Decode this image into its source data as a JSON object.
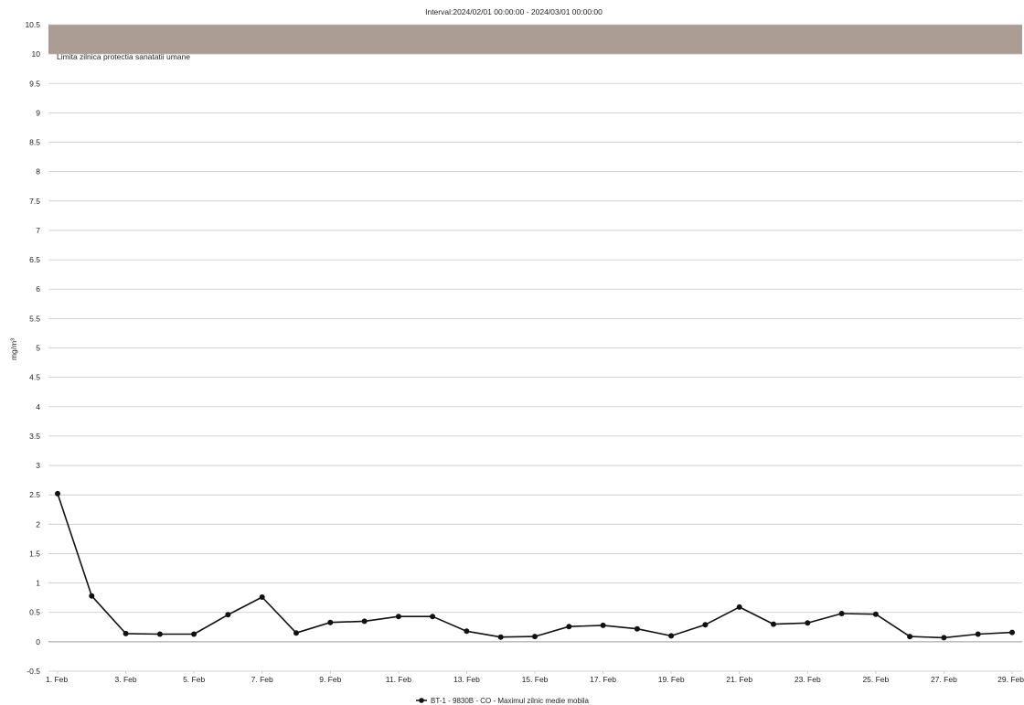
{
  "chart_data": {
    "type": "line",
    "title": "Interval:2024/02/01 00:00:00 - 2024/03/01 00:00:00",
    "ylabel": "mg/m³",
    "xlabel": "",
    "ylim": [
      -0.5,
      10.5
    ],
    "yticks": [
      "-0.5",
      "0",
      "0.5",
      "1",
      "1.5",
      "2",
      "2.5",
      "3",
      "3.5",
      "4",
      "4.5",
      "5",
      "5.5",
      "6",
      "6.5",
      "7",
      "7.5",
      "8",
      "8.5",
      "9",
      "9.5",
      "10",
      "10.5"
    ],
    "x": [
      1,
      2,
      3,
      4,
      5,
      6,
      7,
      8,
      9,
      10,
      11,
      12,
      13,
      14,
      15,
      16,
      17,
      18,
      19,
      20,
      21,
      22,
      23,
      24,
      25,
      26,
      27,
      28,
      29
    ],
    "xlim": [
      1,
      29
    ],
    "xtick_labels": [
      "1. Feb",
      "3. Feb",
      "5. Feb",
      "7. Feb",
      "9. Feb",
      "11. Feb",
      "13. Feb",
      "15. Feb",
      "17. Feb",
      "19. Feb",
      "21. Feb",
      "23. Feb",
      "25. Feb",
      "27. Feb",
      "29. Feb"
    ],
    "xtick_days": [
      1,
      3,
      5,
      7,
      9,
      11,
      13,
      15,
      17,
      19,
      21,
      23,
      25,
      27,
      29
    ],
    "grid": true,
    "legend_position": "bottom-center",
    "threshold_band": {
      "label": "Limita zilnica protectia sanatatii umane",
      "from": 10,
      "to": 10.5,
      "color": "#ab9d93"
    },
    "series": [
      {
        "name": "BT-1 - 9830B - CO - Maximul zilnic medie mobila",
        "color": "#111111",
        "values": [
          2.52,
          0.78,
          0.14,
          0.13,
          0.13,
          0.46,
          0.76,
          0.15,
          0.33,
          0.35,
          0.43,
          0.43,
          0.18,
          0.08,
          0.09,
          0.26,
          0.28,
          0.22,
          0.1,
          0.29,
          0.59,
          0.3,
          0.32,
          0.48,
          0.47,
          0.09,
          0.07,
          0.13,
          0.16
        ]
      }
    ]
  }
}
